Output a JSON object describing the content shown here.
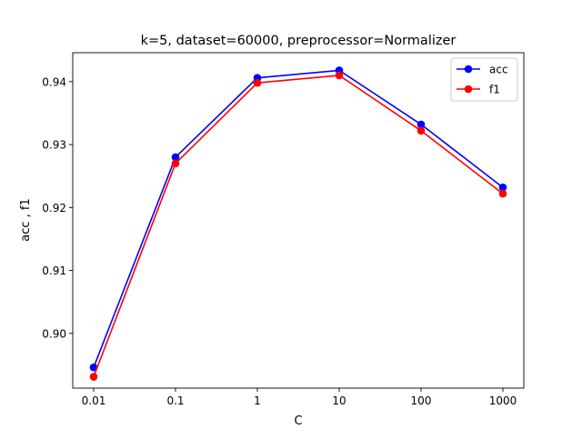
{
  "chart_data": {
    "type": "line",
    "title": "k=5, dataset=60000, preprocessor=Normalizer",
    "xlabel": "C",
    "ylabel": "acc , f1",
    "categories": [
      "0.01",
      "0.1",
      "1",
      "10",
      "100",
      "1000"
    ],
    "yticks": [
      "0.90",
      "0.91",
      "0.92",
      "0.93",
      "0.94"
    ],
    "ytick_values": [
      0.9,
      0.91,
      0.92,
      0.93,
      0.94
    ],
    "ylim": [
      0.8913,
      0.9446
    ],
    "grid": false,
    "legend_position": "top-right",
    "series": [
      {
        "name": "acc",
        "color": "#0000ff",
        "marker": "circle",
        "values": [
          0.8946,
          0.928,
          0.9406,
          0.9418,
          0.9332,
          0.9232
        ]
      },
      {
        "name": "f1",
        "color": "#ff0000",
        "marker": "circle",
        "values": [
          0.8931,
          0.927,
          0.9398,
          0.941,
          0.9322,
          0.9222
        ]
      }
    ]
  }
}
